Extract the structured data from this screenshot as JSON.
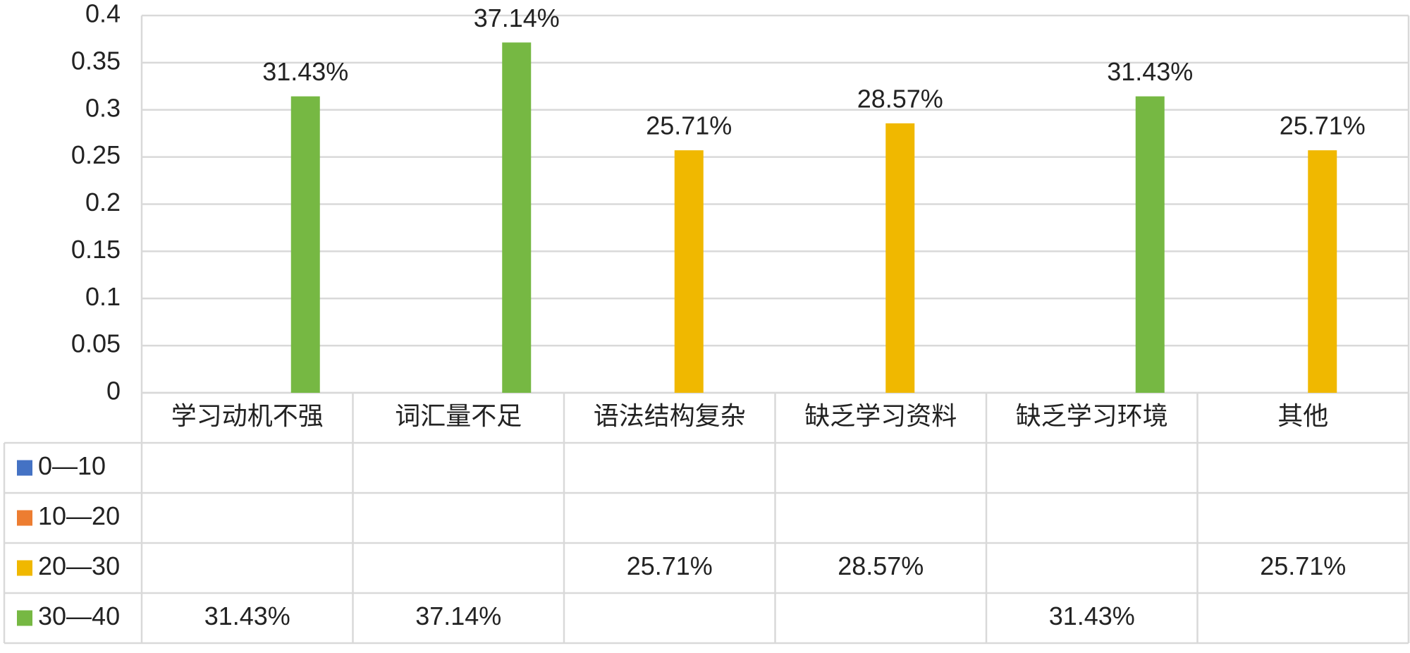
{
  "chart_data": {
    "type": "bar",
    "categories": [
      "学习动机不强",
      "词汇量不足",
      "语法结构复杂",
      "缺乏学习资料",
      "缺乏学习环境",
      "其他"
    ],
    "series": [
      {
        "name": "0—10",
        "color": "#4472c4",
        "values": [
          null,
          null,
          null,
          null,
          null,
          null
        ]
      },
      {
        "name": "10—20",
        "color": "#ed7d31",
        "values": [
          null,
          null,
          null,
          null,
          null,
          null
        ]
      },
      {
        "name": "20—30",
        "color": "#f0b800",
        "values": [
          null,
          null,
          0.2571,
          0.2857,
          null,
          0.2571
        ],
        "value_labels": [
          null,
          null,
          "25.71%",
          "28.57%",
          null,
          "25.71%"
        ]
      },
      {
        "name": "30—40",
        "color": "#76b843",
        "values": [
          0.3143,
          0.3714,
          null,
          null,
          0.3143,
          null
        ],
        "value_labels": [
          "31.43%",
          "37.14%",
          null,
          null,
          "31.43%",
          null
        ]
      }
    ],
    "ylim": [
      0,
      0.4
    ],
    "yticks": [
      0,
      0.05,
      0.1,
      0.15,
      0.2,
      0.25,
      0.3,
      0.35,
      0.4
    ],
    "grid": true,
    "data_table": true
  }
}
